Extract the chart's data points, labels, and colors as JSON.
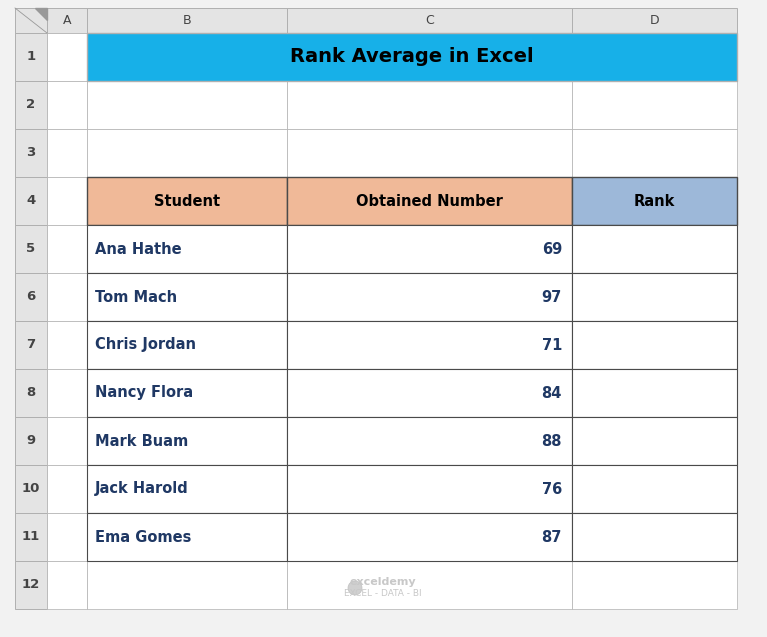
{
  "title": "Rank Average in Excel",
  "title_bg_color": "#17B0E8",
  "title_text_color": "#000000",
  "header_row": [
    "Student",
    "Obtained Number",
    "Rank"
  ],
  "header_colors": [
    "#F0B998",
    "#F0B998",
    "#9DB8D9"
  ],
  "data_rows": [
    [
      "Ana Hathe",
      "69",
      ""
    ],
    [
      "Tom Mach",
      "97",
      ""
    ],
    [
      "Chris Jordan",
      "71",
      ""
    ],
    [
      "Nancy Flora",
      "84",
      ""
    ],
    [
      "Mark Buam",
      "88",
      ""
    ],
    [
      "Jack Harold",
      "76",
      ""
    ],
    [
      "Ema Gomes",
      "87",
      ""
    ]
  ],
  "col_labels": [
    "A",
    "B",
    "C",
    "D"
  ],
  "n_rows": 12,
  "bg_color": "#F2F2F2",
  "cell_bg_color": "#FFFFFF",
  "grid_color": "#B0B0B0",
  "col_header_bg": "#E4E4E4",
  "row_header_bg": "#E4E4E4",
  "data_text_color": "#1F3864",
  "header_text_color": "#000000",
  "watermark_text": "exceldemy",
  "watermark_subtext": "EXCEL - DATA - BI",
  "watermark_color": "#C8C8C8",
  "border_color": "#5A5A5A",
  "thin_border": "#B0B0B0",
  "table_border": "#4A4A4A"
}
